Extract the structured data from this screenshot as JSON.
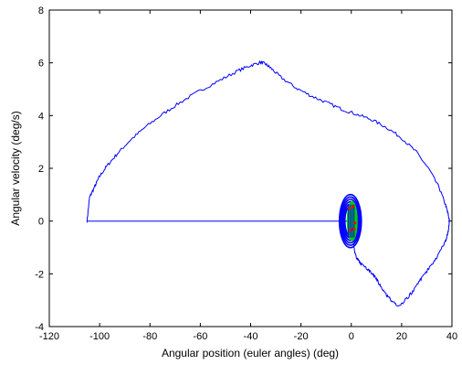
{
  "chart_data": {
    "type": "line",
    "title": "",
    "xlabel": "Angular position (euler angles) (deg)",
    "ylabel": "Angular velocity (deg/s)",
    "xlim": [
      -120,
      40
    ],
    "ylim": [
      -4,
      8
    ],
    "xticks": [
      -120,
      -100,
      -80,
      -60,
      -40,
      -20,
      0,
      20,
      40
    ],
    "yticks": [
      -4,
      -2,
      0,
      2,
      4,
      6,
      8
    ],
    "grid": false,
    "legend": "none",
    "series": [
      {
        "color": "#0000ff",
        "x": [
          -105,
          -104,
          -102,
          -100,
          -97,
          -93,
          -88,
          -82,
          -75,
          -68,
          -60,
          -52,
          -45,
          -40,
          -36,
          -34,
          -32,
          -28,
          -22,
          -16,
          -10,
          -4,
          2,
          8,
          14,
          20,
          26,
          31,
          35,
          37.5,
          38.5,
          39,
          38.5,
          37.5,
          35,
          32,
          28,
          25,
          22,
          19,
          16,
          14,
          12,
          10,
          8,
          6,
          4,
          2.5,
          1.5,
          1,
          1.5
        ],
        "y": [
          0,
          0.9,
          1.3,
          1.7,
          2.1,
          2.55,
          3.05,
          3.55,
          4.05,
          4.5,
          4.95,
          5.35,
          5.7,
          5.9,
          6.02,
          5.95,
          5.8,
          5.45,
          5.05,
          4.75,
          4.5,
          4.25,
          4.05,
          3.85,
          3.55,
          3.15,
          2.6,
          1.95,
          1.25,
          0.6,
          0.25,
          0,
          -0.4,
          -0.75,
          -1.2,
          -1.65,
          -2.15,
          -2.6,
          -2.95,
          -3.2,
          -3.05,
          -2.8,
          -2.5,
          -2.2,
          -1.95,
          -1.8,
          -1.65,
          -1.45,
          -1.25,
          -0.95,
          -0.6
        ]
      },
      {
        "color": "#0000ff",
        "x": [
          -105,
          0
        ],
        "y": [
          0,
          0
        ]
      }
    ],
    "cluster": {
      "center_x": 0,
      "colors": {
        "loop": "#0000ff",
        "green": "#00cc00",
        "red": "#ff0000"
      }
    }
  }
}
